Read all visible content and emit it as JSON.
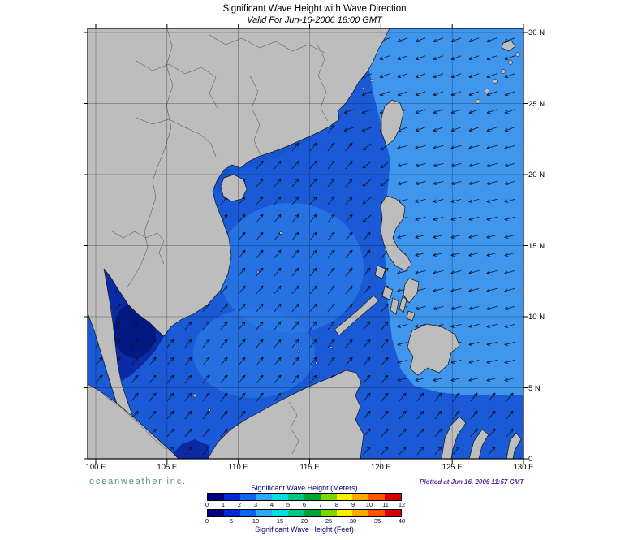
{
  "header": {
    "title": "Significant Wave Height with Wave Direction",
    "subtitle": "Valid For Jun-16-2006 18:00 GMT"
  },
  "map": {
    "lon_labels": [
      "100 E",
      "105 E",
      "110 E",
      "115 E",
      "120 E",
      "125 E",
      "130 E"
    ],
    "lat_labels": [
      "0",
      "5 N",
      "10 N",
      "15 N",
      "20 N",
      "25 N",
      "30 N"
    ],
    "wave_direction_regions": [
      {
        "name": "northwest-pacific",
        "waves_toward_compass_deg": 256
      },
      {
        "name": "east-china-sea-taiwan-strait",
        "waves_toward_compass_deg": 250
      },
      {
        "name": "luzon-strait",
        "waves_toward_compass_deg": 232
      },
      {
        "name": "south-china-sea-and-gulfs",
        "waves_toward_compass_deg": 40
      }
    ]
  },
  "footer": {
    "brand": "oceanweather inc.",
    "plotted": "Plotted at Jun 16, 2006 11:57 GMT"
  },
  "legend": {
    "meters_label": "Significant Wave Height (Meters)",
    "feet_label": "Significant Wave Height (Feet)",
    "meters_ticks": [
      "0",
      "1",
      "2",
      "3",
      "4",
      "5",
      "6",
      "7",
      "8",
      "9",
      "10",
      "11",
      "12"
    ],
    "feet_ticks": [
      "0",
      "5",
      "10",
      "15",
      "20",
      "25",
      "30",
      "35",
      "40"
    ],
    "bar_colors": [
      "#000080",
      "#0028D4",
      "#1064F0",
      "#2FA8F8",
      "#00E0E0",
      "#00C882",
      "#00A432",
      "#78D800",
      "#F8F000",
      "#FFA800",
      "#FF5400",
      "#D80000"
    ]
  },
  "colors": {
    "ocean_base": "#1A5AD6",
    "ocean_light": "#3F96EC",
    "ocean_medium": "#2B78E6",
    "ocean_calm": "#0A2AA6",
    "ocean_calm_core": "#041884",
    "ocean_very_calm": "#02104F",
    "ocean_tonkin": "#1650CC",
    "land": "#BDBDBD",
    "coast": "#141414",
    "arrow": "#0E1430",
    "grid": "#111111"
  }
}
